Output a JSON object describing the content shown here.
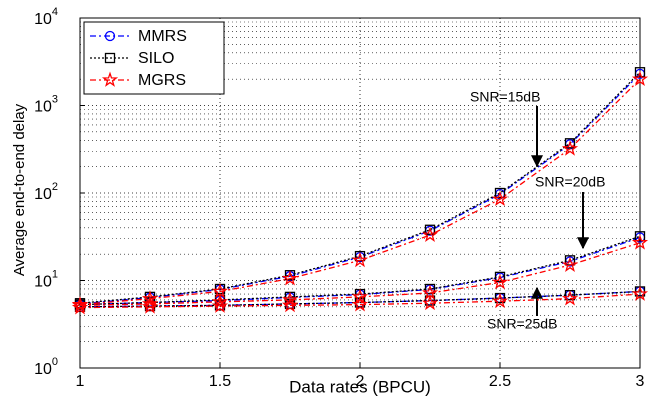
{
  "chart_data": {
    "type": "line",
    "xlabel": "Data rates (BPCU)",
    "ylabel": "Average end-to-end delay",
    "x": [
      1,
      1.25,
      1.5,
      1.75,
      2,
      2.25,
      2.5,
      2.75,
      3
    ],
    "xlim": [
      1,
      3
    ],
    "xticks": [
      1,
      1.5,
      2,
      2.5,
      3
    ],
    "ylim": [
      1,
      10000
    ],
    "log_y": true,
    "grid": true,
    "legend": "upper left",
    "yticks": [
      {
        "value": 1,
        "label": "10",
        "sup": "0"
      },
      {
        "value": 10,
        "label": "10",
        "sup": "1"
      },
      {
        "value": 100,
        "label": "10",
        "sup": "2"
      },
      {
        "value": 1000,
        "label": "10",
        "sup": "3"
      },
      {
        "value": 10000,
        "label": "10",
        "sup": "4"
      }
    ],
    "series": [
      {
        "name": "MMRS",
        "color": "#0000ff",
        "marker": "circle",
        "dash": "6 3 2 3",
        "lines": [
          [
            5.4,
            6.4,
            7.9,
            11.2,
            18.5,
            37,
            97,
            360,
            2300
          ],
          [
            5.3,
            5.6,
            5.9,
            6.4,
            6.9,
            7.9,
            10.8,
            16.5,
            31
          ],
          [
            5.0,
            5.1,
            5.2,
            5.4,
            5.6,
            5.9,
            6.3,
            6.8,
            7.5
          ]
        ]
      },
      {
        "name": "SILO",
        "color": "#000000",
        "marker": "square",
        "dash": "2 2",
        "lines": [
          [
            5.5,
            6.5,
            8,
            11.5,
            19,
            38,
            100,
            370,
            2400
          ],
          [
            5.3,
            5.6,
            6,
            6.5,
            7,
            8,
            11,
            17,
            32
          ],
          [
            5.0,
            5.1,
            5.2,
            5.4,
            5.6,
            5.9,
            6.3,
            6.8,
            7.5
          ]
        ]
      },
      {
        "name": "MGRS",
        "color": "#ff0000",
        "marker": "star",
        "dash": "6 3 2 3",
        "lines": [
          [
            5.3,
            6.2,
            7.5,
            10.5,
            17,
            33,
            85,
            320,
            2000
          ],
          [
            5.2,
            5.4,
            5.7,
            6,
            6.5,
            7.2,
            9.5,
            15,
            27
          ],
          [
            4.9,
            5,
            5.1,
            5.2,
            5.3,
            5.5,
            5.8,
            6.2,
            7.0
          ]
        ]
      }
    ],
    "annotations": [
      "SNR=15dB",
      "SNR=20dB",
      "SNR=25dB"
    ]
  }
}
